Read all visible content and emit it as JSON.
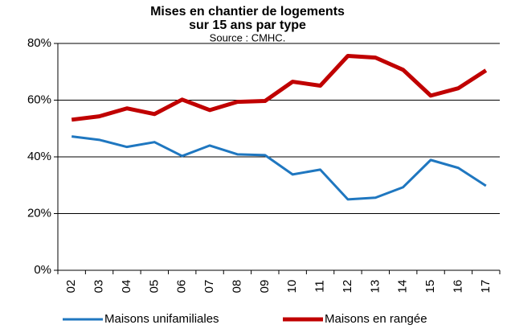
{
  "chart_data": {
    "type": "line",
    "title": [
      "Mises en chantier de logements",
      "sur 15 ans par type"
    ],
    "subtitle": "Source : CMHC.",
    "categories": [
      "02",
      "03",
      "04",
      "05",
      "06",
      "07",
      "08",
      "09",
      "10",
      "11",
      "12",
      "13",
      "14",
      "15",
      "16",
      "17"
    ],
    "series": [
      {
        "name": "Maisons unifamiliales",
        "color": "#1f77c0",
        "values": [
          47.2,
          46,
          43.5,
          45.2,
          40.3,
          44,
          40.9,
          40.6,
          33.8,
          35.5,
          25,
          25.6,
          29.3,
          38.9,
          36.1,
          29.8
        ]
      },
      {
        "name": "Maisons en rangée",
        "color": "#c00000",
        "values": [
          53.1,
          54.3,
          57.1,
          55.1,
          60.2,
          56.5,
          59.4,
          59.7,
          66.5,
          65.1,
          75.6,
          75,
          70.7,
          61.6,
          64.2,
          70.5
        ]
      }
    ],
    "ylim": [
      0,
      80
    ],
    "yticks": [
      {
        "value": 0,
        "label": "0%"
      },
      {
        "value": 20,
        "label": "20%"
      },
      {
        "value": 40,
        "label": "40%"
      },
      {
        "value": 60,
        "label": "60%"
      },
      {
        "value": 80,
        "label": "80%"
      }
    ],
    "grid": true,
    "legend": "bottom"
  }
}
